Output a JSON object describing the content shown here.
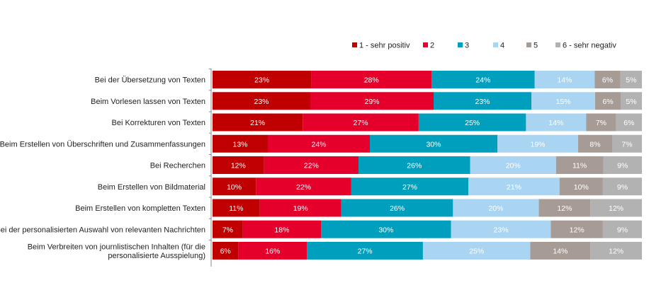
{
  "chart_data": {
    "type": "bar",
    "orientation": "horizontal",
    "stacked": "100%",
    "legend_position": "top-right",
    "grid": false,
    "categories": [
      [
        "Bei der Übersetzung von Texten"
      ],
      [
        "Beim Vorlesen lassen von Texten"
      ],
      [
        "Bei Korrekturen von Texten"
      ],
      [
        "Beim Erstellen von Überschriften und Zusammenfassungen"
      ],
      [
        "Bei Recherchen"
      ],
      [
        "Beim Erstellen von Bildmaterial"
      ],
      [
        "Beim Erstellen von kompletten Texten"
      ],
      [
        "Bei der personalisierten Auswahl von relevanten Nachrichten"
      ],
      [
        "Beim Verbreiten von journlistischen Inhalten (für die",
        "personalisierte Ausspielung)"
      ]
    ],
    "series": [
      {
        "name": "1 - sehr positiv",
        "color": "#c00000",
        "values": [
          23,
          23,
          21,
          13,
          12,
          10,
          11,
          7,
          6
        ]
      },
      {
        "name": "2",
        "color": "#e4002b",
        "values": [
          28,
          29,
          27,
          24,
          22,
          22,
          19,
          18,
          16
        ]
      },
      {
        "name": "3",
        "color": "#009fbd",
        "values": [
          24,
          23,
          25,
          30,
          26,
          27,
          26,
          30,
          27
        ]
      },
      {
        "name": "4",
        "color": "#a9d4f2",
        "values": [
          14,
          15,
          14,
          19,
          20,
          21,
          20,
          23,
          25
        ]
      },
      {
        "name": "5",
        "color": "#a79c95",
        "values": [
          6,
          6,
          7,
          8,
          11,
          10,
          12,
          12,
          14
        ]
      },
      {
        "name": "6 - sehr negativ",
        "color": "#b2b2b2",
        "values": [
          5,
          5,
          6,
          7,
          9,
          9,
          12,
          9,
          12
        ]
      }
    ],
    "value_suffix": "%"
  }
}
